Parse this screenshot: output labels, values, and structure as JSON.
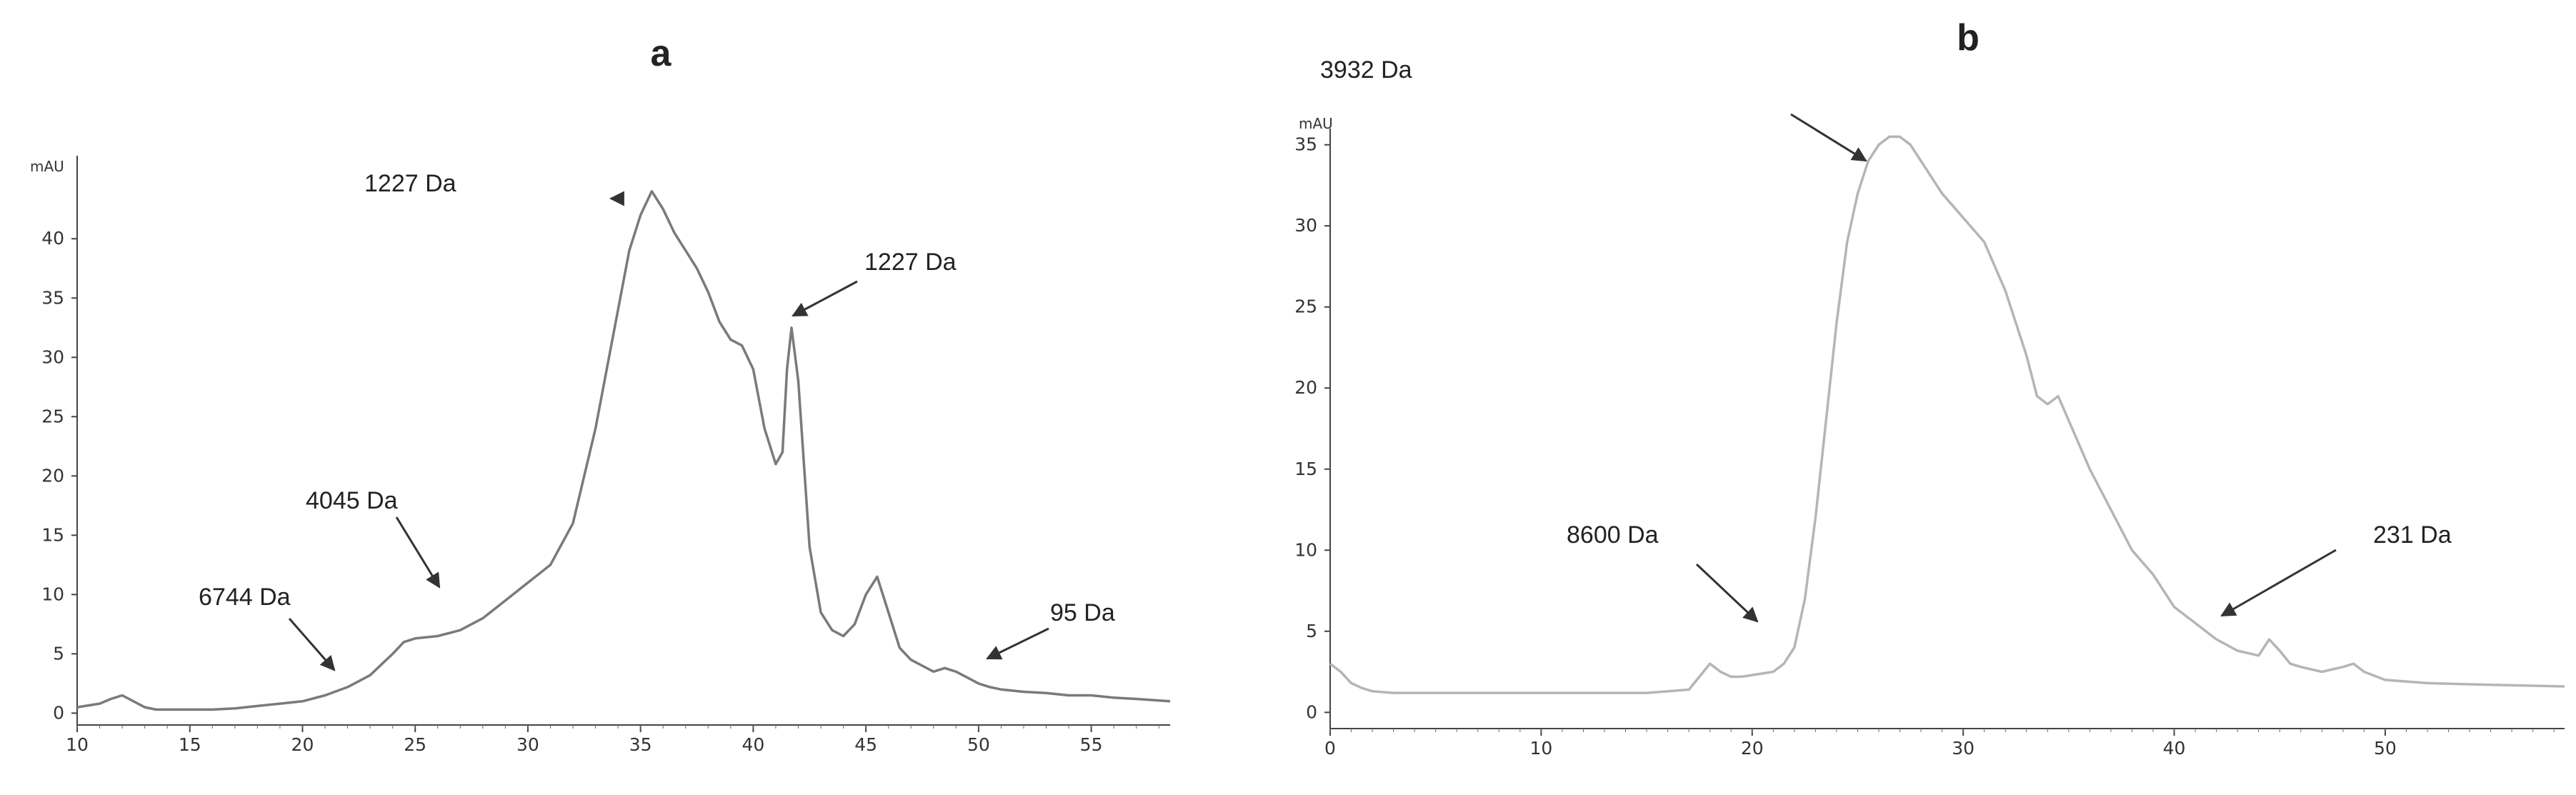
{
  "chart_data": [
    {
      "panel": "a",
      "type": "line",
      "ylabel": "mAU",
      "xlim": [
        10,
        58.5
      ],
      "ylim": [
        -1,
        47
      ],
      "x_ticks": [
        "10",
        "15",
        "20",
        "25",
        "30",
        "35",
        "40",
        "45",
        "50",
        "55"
      ],
      "y_ticks": [
        "0",
        "5",
        "10",
        "15",
        "20",
        "25",
        "30",
        "35",
        "40"
      ],
      "line_color": "#7a7a7a",
      "series": [
        {
          "x": [
            10.0,
            11.0,
            11.5,
            12.0,
            12.5,
            13.0,
            13.5,
            14.0,
            15.0,
            16.0,
            17.0,
            18.0,
            19.0,
            20.0,
            21.0,
            22.0,
            23.0,
            24.0,
            24.5,
            25.0,
            26.0,
            27.0,
            28.0,
            29.0,
            30.0,
            31.0,
            32.0,
            33.0,
            34.0,
            34.5,
            35.0,
            35.5,
            36.0,
            36.5,
            37.0,
            37.5,
            38.0,
            38.5,
            39.0,
            39.5,
            40.0,
            40.5,
            41.0,
            41.3,
            41.5,
            41.7,
            42.0,
            42.5,
            43.0,
            43.5,
            44.0,
            44.5,
            45.0,
            45.5,
            46.0,
            46.5,
            47.0,
            47.5,
            48.0,
            48.5,
            49.0,
            49.5,
            50.0,
            50.5,
            51.0,
            52.0,
            53.0,
            54.0,
            55.0,
            56.0,
            57.0,
            58.5
          ],
          "y": [
            0.5,
            0.8,
            1.2,
            1.5,
            1.0,
            0.5,
            0.3,
            0.3,
            0.3,
            0.3,
            0.4,
            0.6,
            0.8,
            1.0,
            1.5,
            2.2,
            3.2,
            5.0,
            6.0,
            6.3,
            6.5,
            7.0,
            8.0,
            9.5,
            11.0,
            12.5,
            16.0,
            24.0,
            34.0,
            39.0,
            42.0,
            44.0,
            42.5,
            40.5,
            39.0,
            37.5,
            35.5,
            33.0,
            31.5,
            31.0,
            29.0,
            24.0,
            21.0,
            22.0,
            29.0,
            32.5,
            28.0,
            14.0,
            8.5,
            7.0,
            6.5,
            7.5,
            10.0,
            11.5,
            8.5,
            5.5,
            4.5,
            4.0,
            3.5,
            3.8,
            3.5,
            3.0,
            2.5,
            2.2,
            2.0,
            1.8,
            1.7,
            1.5,
            1.5,
            1.3,
            1.2,
            1.0
          ]
        }
      ],
      "annotations": [
        {
          "text": "1227 Da",
          "x": 35.0,
          "y": 44.0
        },
        {
          "text": "1227 Da",
          "x": 41.7,
          "y": 32.5
        },
        {
          "text": "4045 Da",
          "x": 25.8,
          "y": 6.5
        },
        {
          "text": "6744 Da",
          "x": 21.5,
          "y": 1.5
        },
        {
          "text": "95 Da",
          "x": 50.5,
          "y": 2.2
        }
      ]
    },
    {
      "panel": "b",
      "type": "line",
      "ylabel": "mAU",
      "xlim": [
        0,
        58.5
      ],
      "ylim": [
        -1,
        36
      ],
      "x_ticks": [
        "0",
        "10",
        "20",
        "30",
        "40",
        "50"
      ],
      "y_ticks": [
        "0",
        "5",
        "10",
        "15",
        "20",
        "25",
        "30",
        "35"
      ],
      "line_color": "#b5b5b5",
      "series": [
        {
          "x": [
            0.0,
            0.5,
            1.0,
            1.5,
            2.0,
            3.0,
            5.0,
            10.0,
            15.0,
            17.0,
            17.5,
            18.0,
            18.5,
            19.0,
            19.5,
            20.0,
            21.0,
            21.5,
            22.0,
            22.5,
            23.0,
            23.5,
            24.0,
            24.5,
            25.0,
            25.5,
            26.0,
            26.5,
            27.0,
            27.5,
            28.0,
            28.5,
            29.0,
            30.0,
            31.0,
            32.0,
            33.0,
            33.5,
            34.0,
            34.5,
            35.0,
            36.0,
            37.0,
            38.0,
            39.0,
            40.0,
            41.0,
            42.0,
            43.0,
            44.0,
            44.5,
            45.0,
            45.5,
            46.0,
            47.0,
            48.0,
            48.5,
            49.0,
            50.0,
            52.0,
            55.0,
            58.5
          ],
          "y": [
            3.0,
            2.5,
            1.8,
            1.5,
            1.3,
            1.2,
            1.2,
            1.2,
            1.2,
            1.4,
            2.2,
            3.0,
            2.5,
            2.2,
            2.2,
            2.3,
            2.5,
            3.0,
            4.0,
            7.0,
            12.0,
            18.0,
            24.0,
            29.0,
            32.0,
            34.0,
            35.0,
            35.5,
            35.5,
            35.0,
            34.0,
            33.0,
            32.0,
            30.5,
            29.0,
            26.0,
            22.0,
            19.5,
            19.0,
            19.5,
            18.0,
            15.0,
            12.5,
            10.0,
            8.5,
            6.5,
            5.5,
            4.5,
            3.8,
            3.5,
            4.5,
            3.8,
            3.0,
            2.8,
            2.5,
            2.8,
            3.0,
            2.5,
            2.0,
            1.8,
            1.7,
            1.6
          ]
        }
      ],
      "annotations": [
        {
          "text": "3932 Da",
          "x": 25.5,
          "y": 35.0
        },
        {
          "text": "8600 Da",
          "x": 20.0,
          "y": 5.5
        },
        {
          "text": "231 Da",
          "x": 41.0,
          "y": 6.5
        }
      ]
    }
  ]
}
